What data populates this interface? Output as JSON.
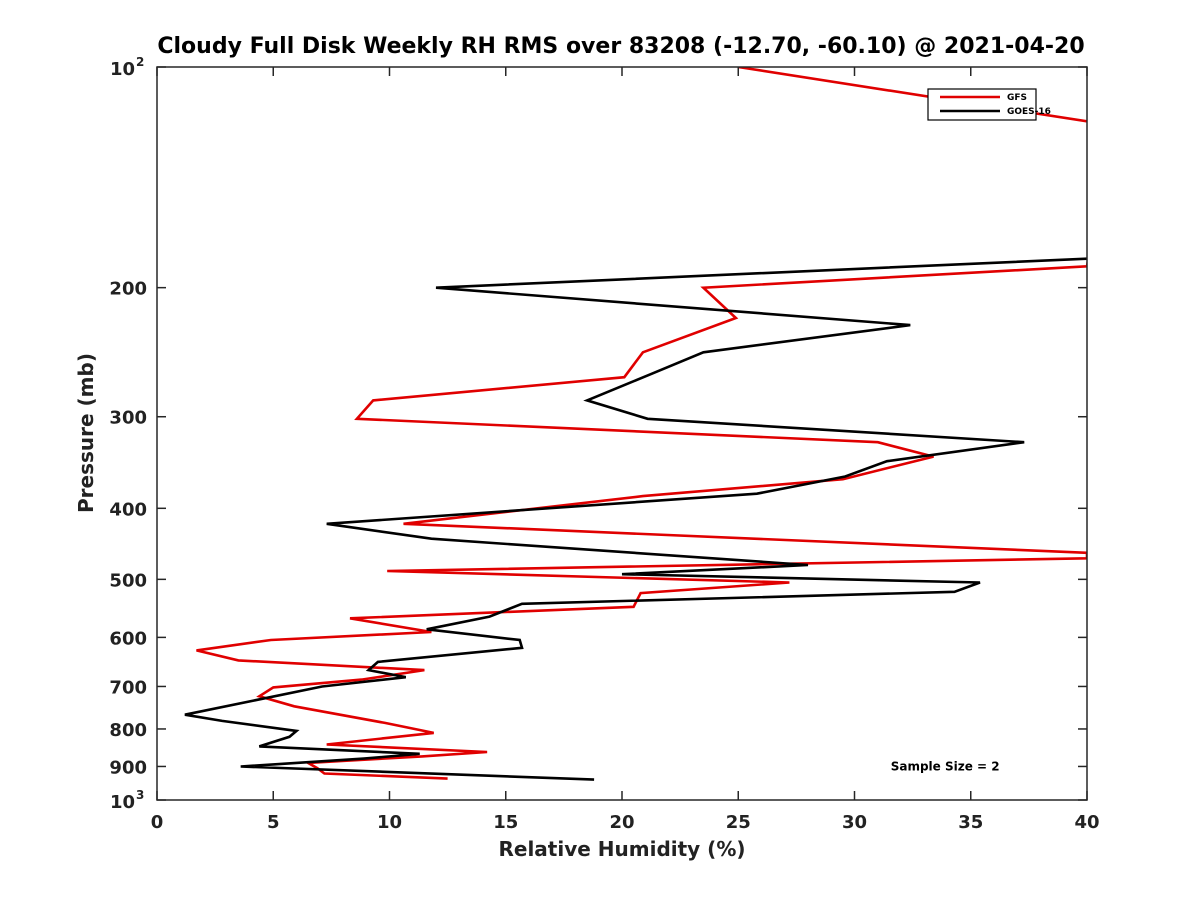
{
  "chart_data": {
    "type": "line",
    "title": "Cloudy Full Disk Weekly RH RMS over 83208 (-12.70, -60.10) @ 2021-04-20",
    "xlabel": "Relative Humidity (%)",
    "ylabel": "Pressure (mb)",
    "xlim": [
      0,
      40
    ],
    "ylim": [
      100,
      1000
    ],
    "yscale": "log",
    "y_reversed": true,
    "x_ticks": [
      0,
      5,
      10,
      15,
      20,
      25,
      30,
      35,
      40
    ],
    "x_tick_labels": [
      "0",
      "5",
      "10",
      "15",
      "20",
      "25",
      "30",
      "35",
      "40"
    ],
    "y_ticks": [
      {
        "value": 100,
        "base": "10",
        "exp": "2"
      },
      {
        "value": 200,
        "label": "200"
      },
      {
        "value": 300,
        "label": "300"
      },
      {
        "value": 400,
        "label": "400"
      },
      {
        "value": 500,
        "label": "500"
      },
      {
        "value": 600,
        "label": "600"
      },
      {
        "value": 700,
        "label": "700"
      },
      {
        "value": 800,
        "label": "800"
      },
      {
        "value": 900,
        "label": "900"
      },
      {
        "value": 1000,
        "base": "10",
        "exp": "3"
      }
    ],
    "legend_position": "top-right",
    "series": [
      {
        "name": "GFS",
        "color": "#e00000",
        "points": [
          [
            25.0,
            100
          ],
          [
            41.0,
            120
          ],
          [
            40.0,
            187
          ],
          [
            23.5,
            200
          ],
          [
            24.9,
            220
          ],
          [
            20.9,
            245
          ],
          [
            20.1,
            265
          ],
          [
            9.3,
            285
          ],
          [
            8.6,
            302
          ],
          [
            31.0,
            325
          ],
          [
            33.4,
            340
          ],
          [
            29.5,
            365
          ],
          [
            20.9,
            385
          ],
          [
            10.6,
            420
          ],
          [
            40.0,
            460
          ],
          [
            40.0,
            468
          ],
          [
            9.9,
            487
          ],
          [
            27.2,
            505
          ],
          [
            20.8,
            522
          ],
          [
            20.5,
            545
          ],
          [
            8.3,
            565
          ],
          [
            11.8,
            590
          ],
          [
            4.9,
            605
          ],
          [
            1.7,
            625
          ],
          [
            3.5,
            645
          ],
          [
            11.5,
            665
          ],
          [
            8.8,
            685
          ],
          [
            5.0,
            702
          ],
          [
            4.4,
            722
          ],
          [
            5.9,
            745
          ],
          [
            9.8,
            785
          ],
          [
            11.9,
            810
          ],
          [
            7.3,
            840
          ],
          [
            14.2,
            860
          ],
          [
            11.4,
            872
          ],
          [
            6.5,
            890
          ],
          [
            6.9,
            905
          ],
          [
            7.2,
            920
          ],
          [
            12.5,
            935
          ]
        ]
      },
      {
        "name": "GOES-16",
        "color": "#000000",
        "points": [
          [
            41.0,
            182
          ],
          [
            12.0,
            200
          ],
          [
            32.4,
            225
          ],
          [
            23.5,
            245
          ],
          [
            21.3,
            262
          ],
          [
            18.5,
            285
          ],
          [
            21.1,
            302
          ],
          [
            37.3,
            325
          ],
          [
            31.4,
            345
          ],
          [
            29.6,
            362
          ],
          [
            25.8,
            382
          ],
          [
            7.3,
            420
          ],
          [
            11.8,
            440
          ],
          [
            28.0,
            478
          ],
          [
            20.0,
            492
          ],
          [
            35.4,
            505
          ],
          [
            34.3,
            520
          ],
          [
            15.7,
            540
          ],
          [
            14.3,
            562
          ],
          [
            11.6,
            585
          ],
          [
            15.6,
            605
          ],
          [
            15.7,
            620
          ],
          [
            9.5,
            648
          ],
          [
            9.1,
            665
          ],
          [
            10.7,
            680
          ],
          [
            7.1,
            700
          ],
          [
            1.2,
            765
          ],
          [
            2.8,
            780
          ],
          [
            6.0,
            805
          ],
          [
            5.7,
            820
          ],
          [
            4.4,
            845
          ],
          [
            11.3,
            865
          ],
          [
            8.9,
            878
          ],
          [
            3.6,
            900
          ],
          [
            18.8,
            938
          ]
        ]
      }
    ],
    "annotations": [
      {
        "text": "Sample Size = 2",
        "x": 33.9,
        "y": 900
      }
    ]
  }
}
